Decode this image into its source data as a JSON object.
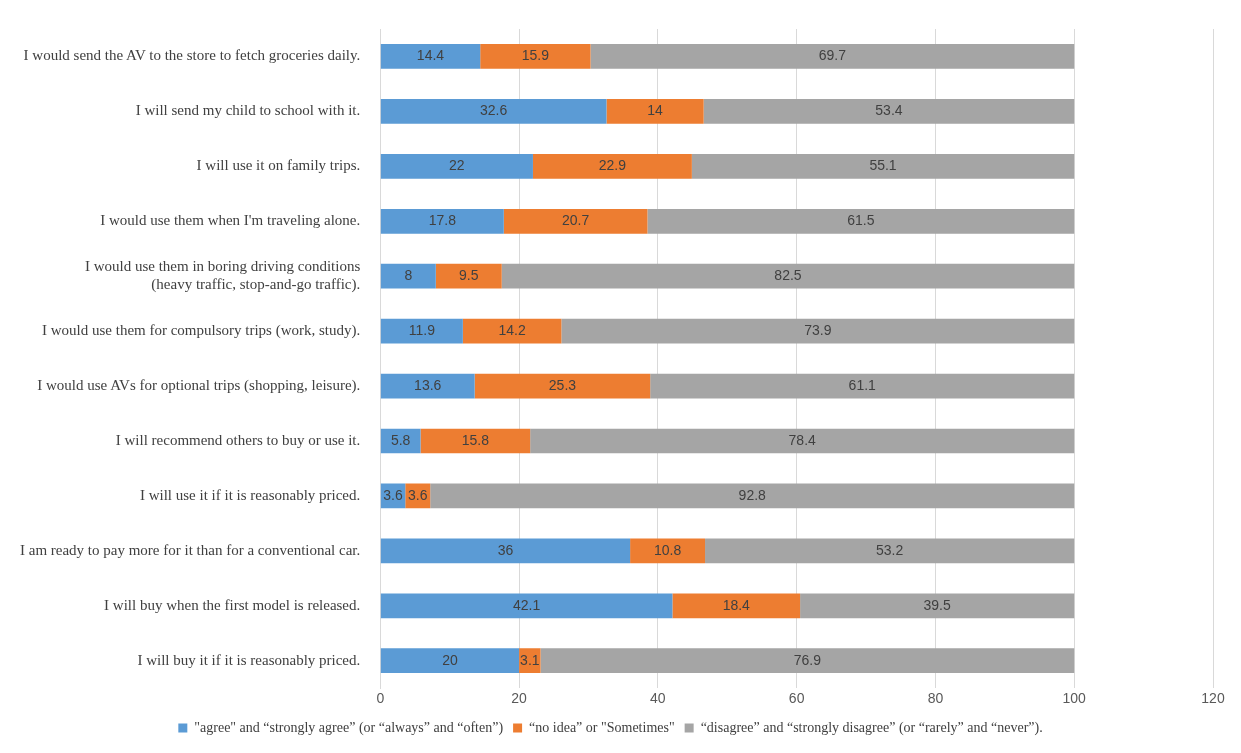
{
  "chart_data": {
    "type": "bar",
    "orientation": "horizontal",
    "stacked": true,
    "data_labels": true,
    "grid": "x",
    "legend": "bottom",
    "categories": [
      "I would send the AV to the store to fetch groceries daily.",
      "I will send my child to school with it.",
      "I will use it on family trips.",
      "I would use them when I'm traveling alone.",
      "I would use them in boring driving conditions\n(heavy traffic, stop-and-go traffic).",
      "I would use them for compulsory trips (work, study).",
      "I would use AVs for optional trips (shopping, leisure).",
      "I will recommend others to buy or use it.",
      "I will use it if it is reasonably priced.",
      "I am ready to pay more for it than for a conventional car.",
      "I will buy when the first model is released.",
      "I will buy it if it is reasonably priced."
    ],
    "series": [
      {
        "name": "\"agree\" and “strongly agree” (or “always” and “often”)",
        "color": "#5b9bd5",
        "values": [
          14.4,
          32.6,
          22,
          17.8,
          8,
          11.9,
          13.6,
          5.8,
          3.6,
          36,
          42.1,
          20
        ]
      },
      {
        "name": "“no idea” or \"Sometimes\"",
        "color": "#ed7d31",
        "values": [
          15.9,
          14,
          22.9,
          20.7,
          9.5,
          14.2,
          25.3,
          15.8,
          3.6,
          10.8,
          18.4,
          3.1
        ]
      },
      {
        "name": "“disagree” and “strongly disagree” (or “rarely” and “never”).",
        "color": "#a5a5a5",
        "values": [
          69.7,
          53.4,
          55.1,
          61.5,
          82.5,
          73.9,
          61.1,
          78.4,
          92.8,
          53.2,
          39.5,
          76.9
        ]
      }
    ],
    "xlim": [
      0,
      120
    ],
    "xticks": [
      0,
      20,
      40,
      60,
      80,
      100,
      120
    ]
  }
}
